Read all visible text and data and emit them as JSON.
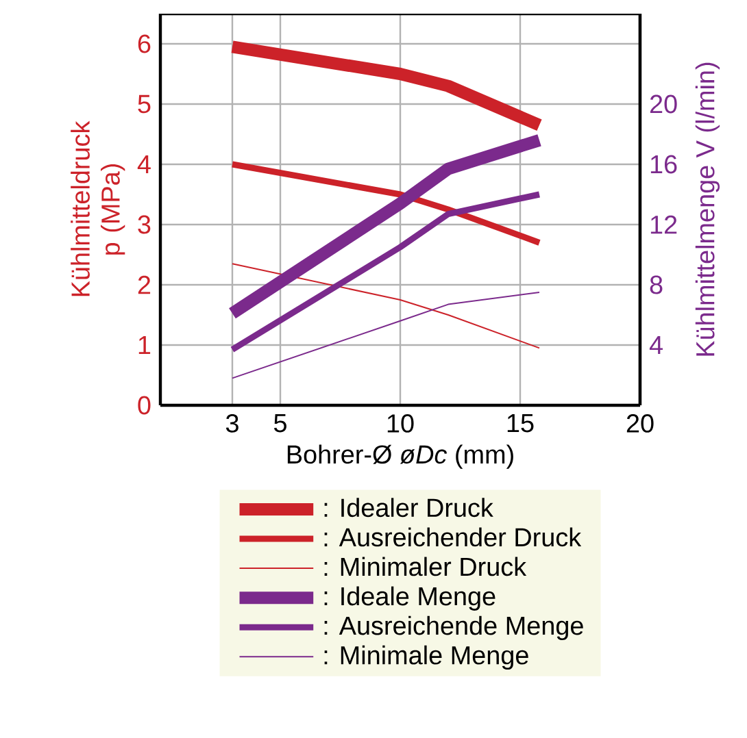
{
  "chart_data": {
    "type": "line",
    "xlabel": "Bohrer-Ø *øDc* (mm)",
    "ylabel": "Kühlmitteldruck p (MPa)",
    "y2label": "Kühlmittelmenge  V (l/min)",
    "x": [
      3,
      10,
      12,
      15.8
    ],
    "series": [
      {
        "name": ": Idealer Druck",
        "color": "#cc2229",
        "values": [
          5.95,
          5.5,
          5.3,
          4.65
        ]
      },
      {
        "name": ": Ausreichender Druck",
        "color": "#cc2229",
        "values": [
          4.0,
          3.5,
          3.25,
          2.7
        ]
      },
      {
        "name": ": Minimaler Druck",
        "color": "#cc2229",
        "values": [
          2.35,
          1.75,
          1.5,
          0.95
        ]
      },
      {
        "name": ": Ideale Menge",
        "color": "#7b2a8c",
        "axis": "y2",
        "values": [
          6.1,
          13.4,
          15.7,
          17.6
        ]
      },
      {
        "name": ": Ausreichende Menge",
        "color": "#7b2a8c",
        "axis": "y2",
        "values": [
          3.7,
          10.5,
          12.7,
          14.0
        ]
      },
      {
        "name": ": Minimale Menge",
        "color": "#7b2a8c",
        "axis": "y2",
        "values": [
          1.8,
          5.6,
          6.7,
          7.5
        ]
      }
    ],
    "xlim": [
      0,
      20
    ],
    "xticks": [
      3,
      5,
      10,
      15,
      20
    ],
    "ylim": [
      0,
      6.5
    ],
    "yticks": [
      0,
      1,
      2,
      3,
      4,
      5,
      6
    ],
    "y2lim": [
      0,
      26
    ],
    "y2ticks": [
      4,
      8,
      12,
      16,
      20
    ],
    "grid": true,
    "legend": "bottom",
    "line_style": "solid"
  }
}
